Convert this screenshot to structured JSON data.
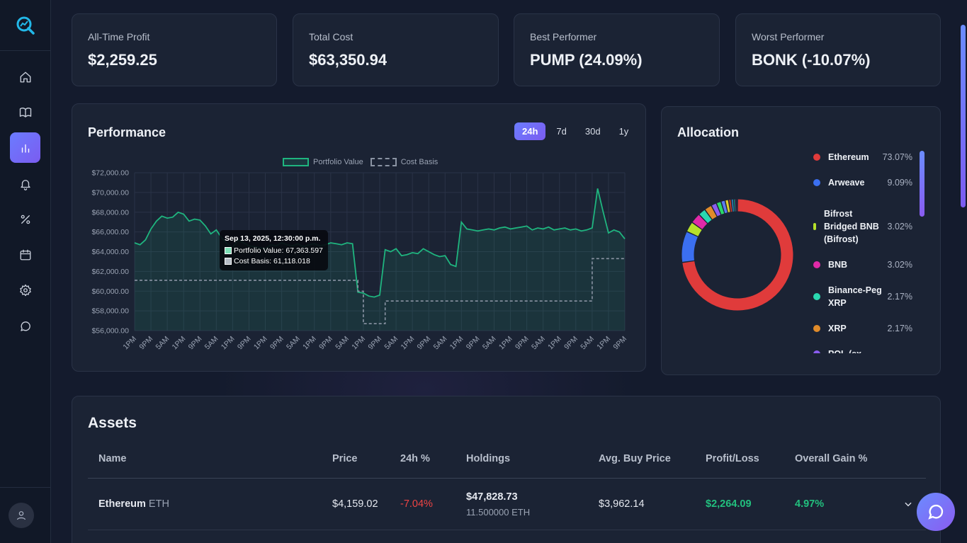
{
  "stats": [
    {
      "label": "All-Time Profit",
      "value": "$2,259.25"
    },
    {
      "label": "Total Cost",
      "value": "$63,350.94"
    },
    {
      "label": "Best Performer",
      "value": "PUMP (24.09%)"
    },
    {
      "label": "Worst Performer",
      "value": "BONK (-10.07%)"
    }
  ],
  "performance": {
    "title": "Performance",
    "ranges": [
      "24h",
      "7d",
      "30d",
      "1y"
    ],
    "active_range": "24h",
    "tooltip": {
      "title": "Sep 13, 2025, 12:30:00 p.m.",
      "portfolio": "Portfolio Value: 67,363.597",
      "cost": "Cost Basis: 61,118.018"
    }
  },
  "chart_data": {
    "type": "line",
    "legend": [
      "Portfolio Value",
      "Cost Basis"
    ],
    "legend_position": "top",
    "grid": true,
    "ylim": [
      56000,
      72000
    ],
    "yticks": [
      "$72,000.00",
      "$70,000.00",
      "$68,000.00",
      "$66,000.00",
      "$64,000.00",
      "$62,000.00",
      "$60,000.00",
      "$58,000.00",
      "$56,000.00"
    ],
    "xticks": [
      "1PM",
      "9PM",
      "5AM",
      "1PM",
      "9PM",
      "5AM",
      "1PM",
      "9PM",
      "1PM",
      "9PM",
      "5AM",
      "1PM",
      "9PM",
      "5AM",
      "1PM",
      "9PM",
      "5AM",
      "1PM",
      "9PM",
      "5AM",
      "1PM",
      "9PM",
      "5AM",
      "1PM",
      "9PM",
      "5AM",
      "1PM",
      "9PM",
      "5AM",
      "1PM",
      "9PM"
    ],
    "series": [
      {
        "name": "Portfolio Value",
        "color": "#1fb57f",
        "values": [
          64900,
          64700,
          65200,
          66300,
          67100,
          67600,
          67400,
          67500,
          68000,
          67800,
          67100,
          67300,
          67200,
          66600,
          65800,
          66200,
          65400,
          64800,
          64400,
          65200,
          64900,
          64600,
          64500,
          64400,
          64300,
          64700,
          64600,
          64900,
          64700,
          64600,
          64800,
          64500,
          64700,
          64800,
          64600,
          64700,
          64900,
          64800,
          64700,
          64900,
          64800,
          59900,
          59800,
          59500,
          59400,
          59600,
          64200,
          64000,
          64300,
          63600,
          63700,
          63900,
          63800,
          64300,
          64000,
          63700,
          63500,
          63600,
          62700,
          62500,
          67000,
          66300,
          66200,
          66100,
          66200,
          66300,
          66200,
          66400,
          66500,
          66300,
          66400,
          66500,
          66600,
          66200,
          66400,
          66300,
          66500,
          66200,
          66300,
          66400,
          66200,
          66300,
          66100,
          66200,
          66400,
          70400,
          68100,
          65900,
          66200,
          66000,
          65300
        ]
      },
      {
        "name": "Cost Basis",
        "color": "#8a93a3",
        "dashed": true,
        "values": [
          61100,
          61100,
          61100,
          61100,
          61100,
          61100,
          61100,
          61100,
          61100,
          61100,
          61100,
          61100,
          61100,
          61100,
          61100,
          61100,
          61100,
          61100,
          61100,
          61100,
          61100,
          61100,
          61100,
          61100,
          61100,
          61100,
          61100,
          61100,
          61100,
          61100,
          61100,
          61100,
          61100,
          61100,
          61100,
          61100,
          61100,
          61100,
          61100,
          61100,
          61100,
          60000,
          56700,
          56700,
          56700,
          56700,
          59000,
          59000,
          59000,
          59000,
          59000,
          59000,
          59000,
          59000,
          59000,
          59000,
          59000,
          59000,
          59000,
          59000,
          59000,
          59000,
          59000,
          59000,
          59000,
          59000,
          59000,
          59000,
          59000,
          59000,
          59000,
          59000,
          59000,
          59000,
          59000,
          59000,
          59000,
          59000,
          59000,
          59000,
          59000,
          59000,
          59000,
          59000,
          63300,
          63300,
          63300,
          63300,
          63300,
          63300,
          63300
        ]
      }
    ]
  },
  "allocation": {
    "title": "Allocation",
    "items": [
      {
        "name": "Ethereum",
        "pct": "73.07%",
        "value": 73.07,
        "color": "#e03b3b"
      },
      {
        "name": "Arweave",
        "pct": "9.09%",
        "value": 9.09,
        "color": "#3b6ff0"
      },
      {
        "name": "Bifrost Bridged BNB (Bifrost)",
        "pct": "3.02%",
        "value": 3.02,
        "color": "#b6e02a"
      },
      {
        "name": "BNB",
        "pct": "3.02%",
        "value": 3.02,
        "color": "#e02aa8"
      },
      {
        "name": "Binance-Peg XRP",
        "pct": "2.17%",
        "value": 2.17,
        "color": "#2ad8b0"
      },
      {
        "name": "XRP",
        "pct": "2.17%",
        "value": 2.17,
        "color": "#e08b2a"
      },
      {
        "name": "POL (ex-",
        "pct": "",
        "value": 1.6,
        "color": "#8a5cf0"
      }
    ],
    "other_slices": [
      {
        "value": 1.4,
        "color": "#2ad86a"
      },
      {
        "value": 1.2,
        "color": "#5c7cf0"
      },
      {
        "value": 1.0,
        "color": "#e0d02a"
      },
      {
        "value": 0.8,
        "color": "#c0392b"
      },
      {
        "value": 0.6,
        "color": "#3498db"
      },
      {
        "value": 0.5,
        "color": "#1abc9c"
      },
      {
        "value": 0.4,
        "color": "#9b59b6"
      },
      {
        "value": 0.3,
        "color": "#7f8c8d"
      }
    ]
  },
  "assets": {
    "title": "Assets",
    "columns": [
      "Name",
      "Price",
      "24h %",
      "Holdings",
      "Avg. Buy Price",
      "Profit/Loss",
      "Overall Gain %"
    ],
    "rows": [
      {
        "name": "Ethereum",
        "symbol": "ETH",
        "price": "$4,159.02",
        "change": "-7.04%",
        "holdings_value": "$47,828.73",
        "holdings_amount": "11.500000 ETH",
        "avg_buy": "$3,962.14",
        "profit": "$2,264.09",
        "gain": "4.97%"
      }
    ]
  }
}
